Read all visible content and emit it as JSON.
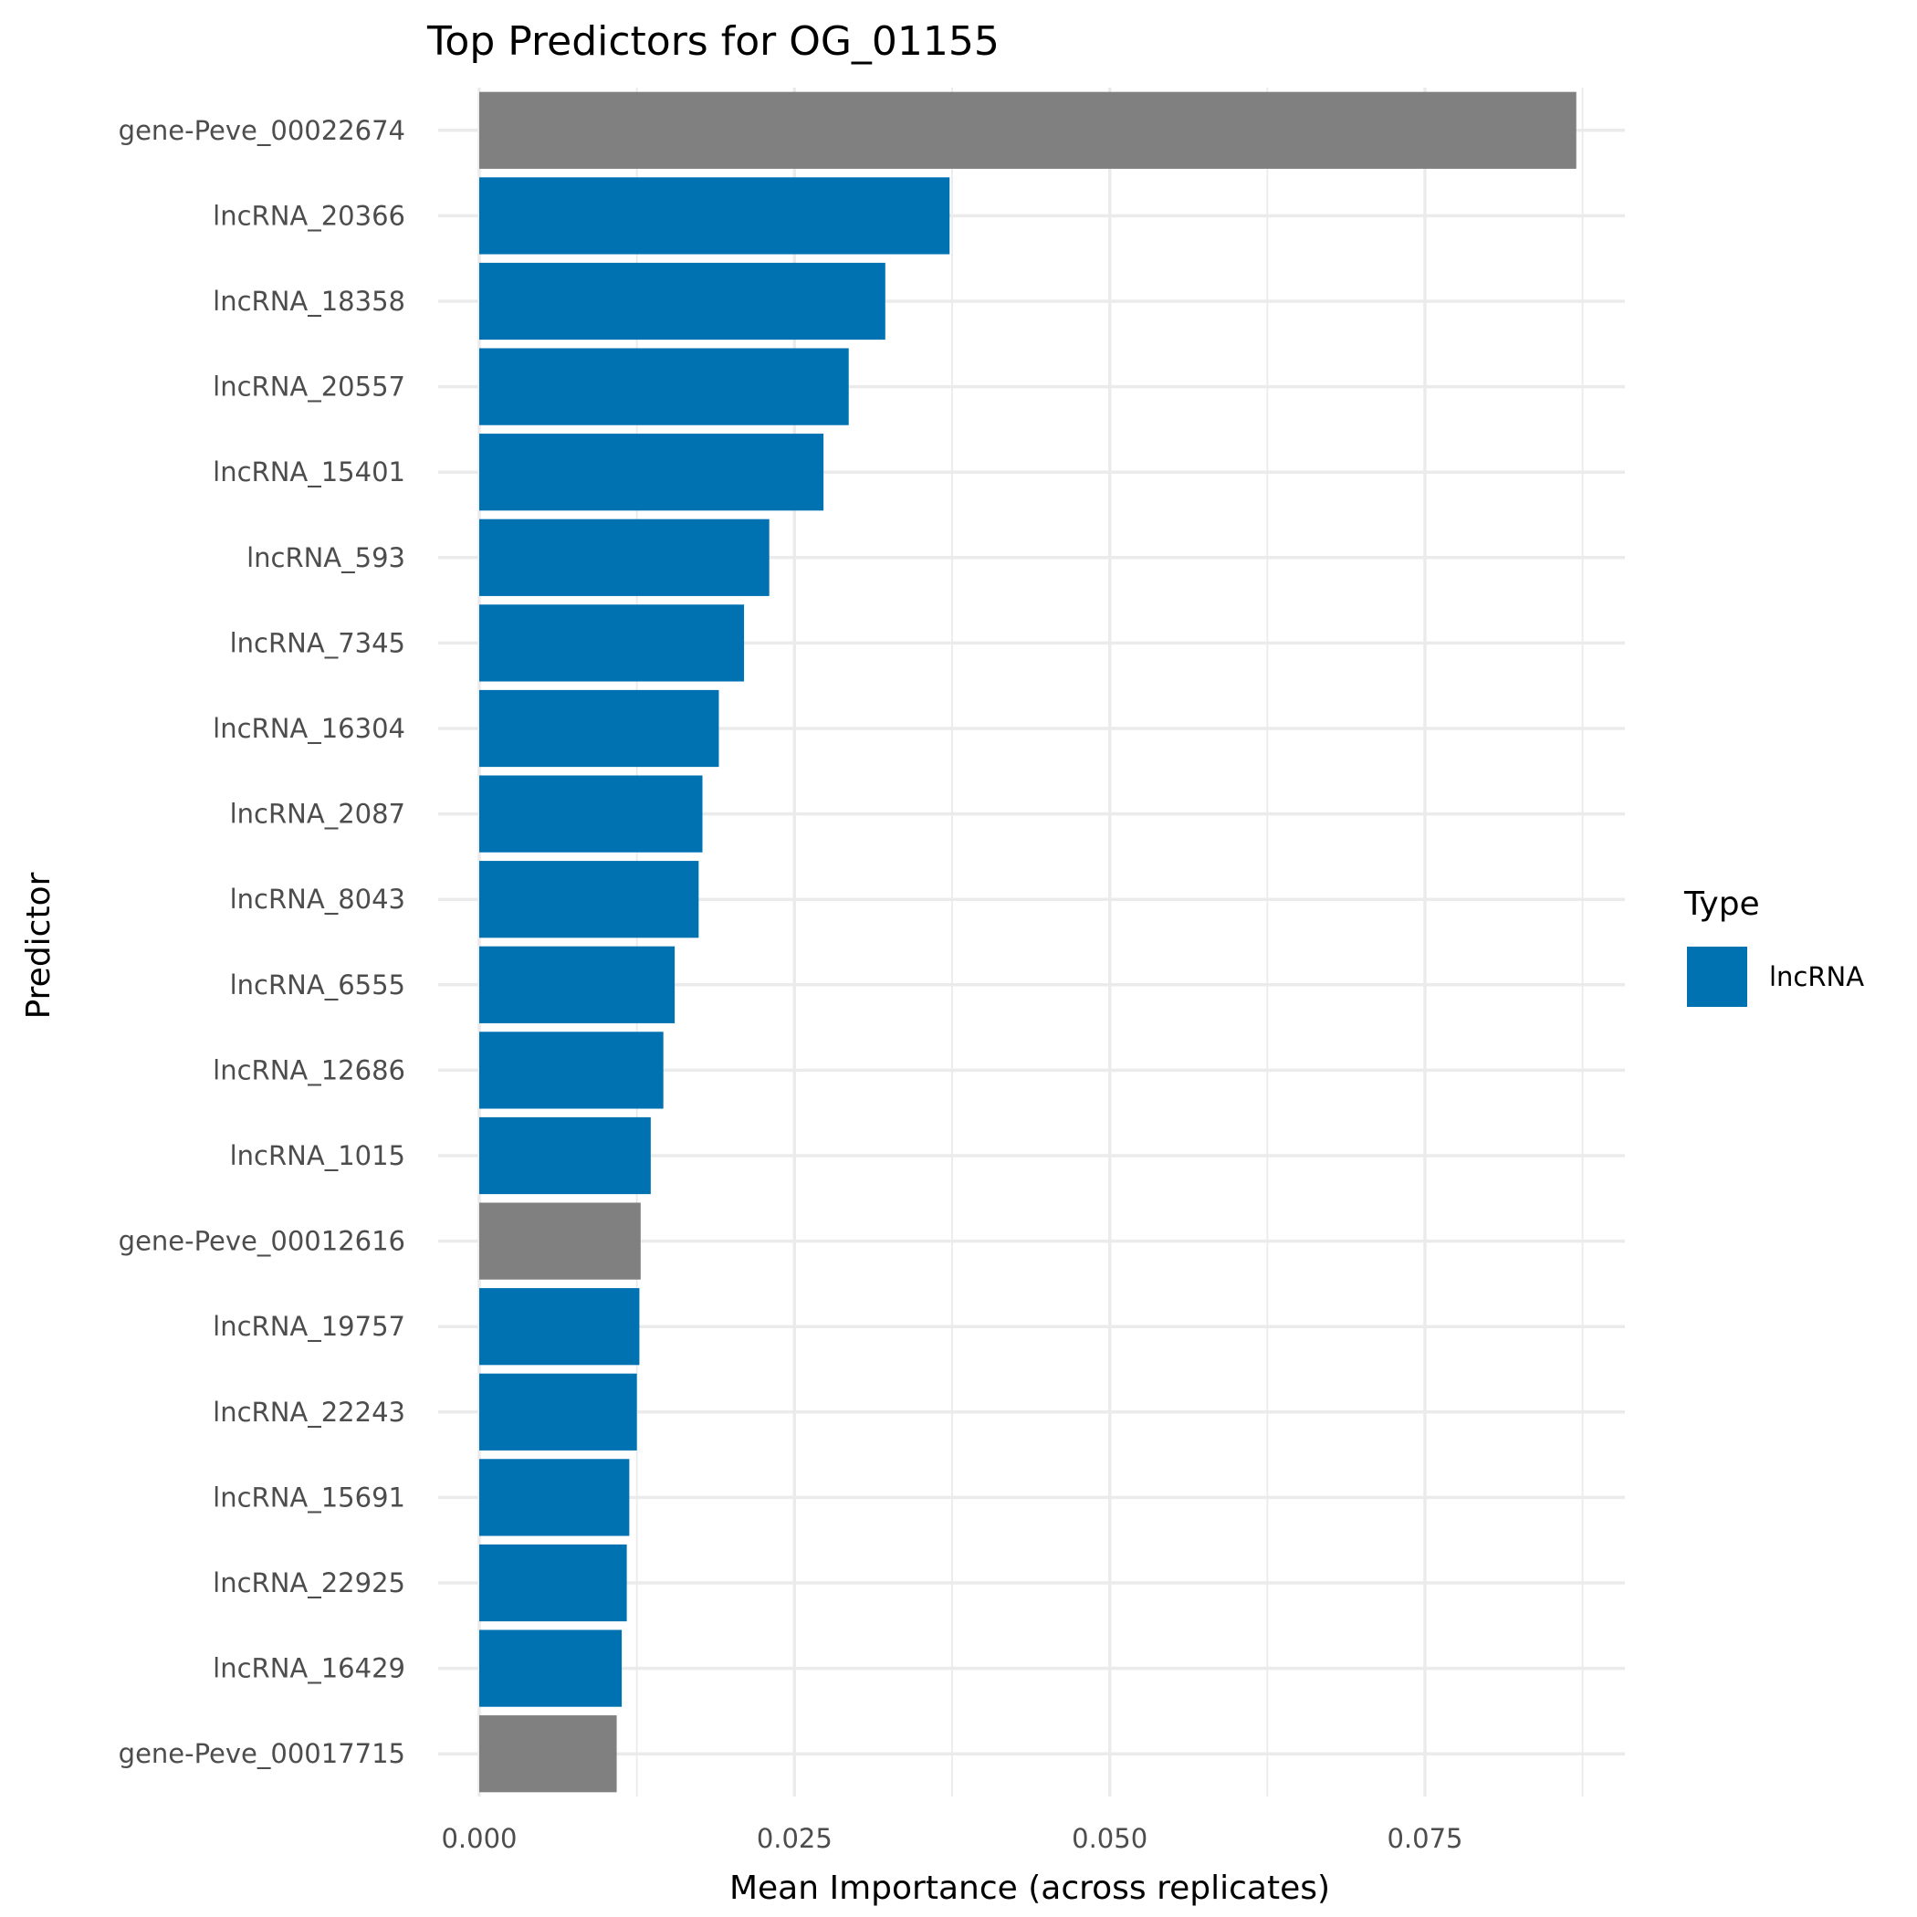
{
  "chart_data": {
    "type": "bar",
    "orientation": "horizontal",
    "title": "Top Predictors for OG_01155",
    "xlabel": "Mean Importance (across replicates)",
    "ylabel": "Predictor",
    "xlim": [
      0,
      0.0915
    ],
    "x_ticks": [
      {
        "value": 0.0,
        "label": "0.000"
      },
      {
        "value": 0.025,
        "label": "0.025"
      },
      {
        "value": 0.05,
        "label": "0.050"
      },
      {
        "value": 0.075,
        "label": "0.075"
      }
    ],
    "x_minor_ticks": [
      0.0125,
      0.0375,
      0.0625,
      0.0875
    ],
    "grid": true,
    "legend": {
      "title": "Type",
      "position": "right",
      "entries": [
        {
          "label": "lncRNA",
          "color": "#0072B2"
        }
      ]
    },
    "colors": {
      "lncRNA": "#0072B2",
      "gene": "#808080"
    },
    "bars": [
      {
        "label": "gene-Peve_00022674",
        "value": 0.087,
        "type": "gene"
      },
      {
        "label": "lncRNA_20366",
        "value": 0.0373,
        "type": "lncRNA"
      },
      {
        "label": "lncRNA_18358",
        "value": 0.0322,
        "type": "lncRNA"
      },
      {
        "label": "lncRNA_20557",
        "value": 0.0293,
        "type": "lncRNA"
      },
      {
        "label": "lncRNA_15401",
        "value": 0.0273,
        "type": "lncRNA"
      },
      {
        "label": "lncRNA_593",
        "value": 0.023,
        "type": "lncRNA"
      },
      {
        "label": "lncRNA_7345",
        "value": 0.021,
        "type": "lncRNA"
      },
      {
        "label": "lncRNA_16304",
        "value": 0.019,
        "type": "lncRNA"
      },
      {
        "label": "lncRNA_2087",
        "value": 0.0177,
        "type": "lncRNA"
      },
      {
        "label": "lncRNA_8043",
        "value": 0.0174,
        "type": "lncRNA"
      },
      {
        "label": "lncRNA_6555",
        "value": 0.0155,
        "type": "lncRNA"
      },
      {
        "label": "lncRNA_12686",
        "value": 0.0146,
        "type": "lncRNA"
      },
      {
        "label": "lncRNA_1015",
        "value": 0.0136,
        "type": "lncRNA"
      },
      {
        "label": "gene-Peve_00012616",
        "value": 0.0128,
        "type": "gene"
      },
      {
        "label": "lncRNA_19757",
        "value": 0.0127,
        "type": "lncRNA"
      },
      {
        "label": "lncRNA_22243",
        "value": 0.0125,
        "type": "lncRNA"
      },
      {
        "label": "lncRNA_15691",
        "value": 0.0119,
        "type": "lncRNA"
      },
      {
        "label": "lncRNA_22925",
        "value": 0.0117,
        "type": "lncRNA"
      },
      {
        "label": "lncRNA_16429",
        "value": 0.0113,
        "type": "lncRNA"
      },
      {
        "label": "gene-Peve_00017715",
        "value": 0.0109,
        "type": "gene"
      }
    ]
  }
}
